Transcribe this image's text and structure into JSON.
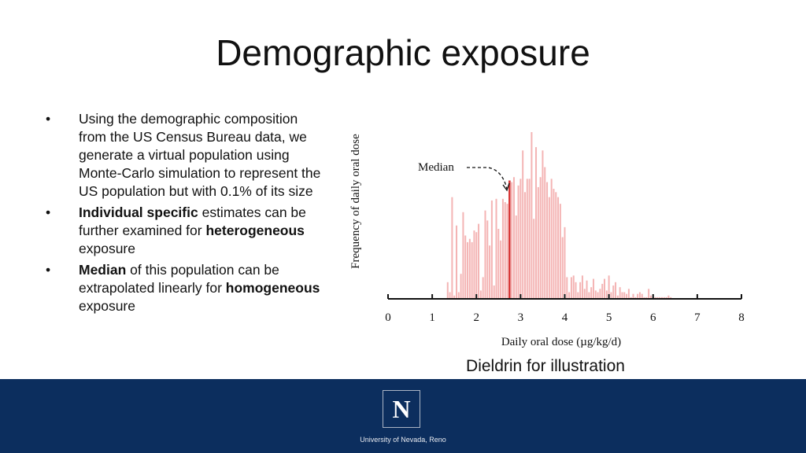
{
  "slide": {
    "title": "Demographic exposure",
    "caption": "Dieldrin for illustration"
  },
  "bullets": {
    "marker": "•",
    "b1": {
      "text": "Using the demographic composition from the US Census Bureau data, we generate a virtual population using Monte-Carlo simulation to represent the US population but with 0.1% of its size"
    },
    "b2": {
      "bold1": "Individual specific",
      "text1": " estimates can be further examined for ",
      "bold2": "heterogeneous",
      "text2": " exposure"
    },
    "b3": {
      "bold1": "Median",
      "text1": " of this population can be extrapolated linearly for ",
      "bold2": "homogeneous",
      "text2": " exposure"
    }
  },
  "chart_data": {
    "type": "bar",
    "title": "",
    "xlabel": "Daily oral dose (µg/kg/d)",
    "ylabel": "Frequency of daily oral dose",
    "xlim": [
      0,
      8
    ],
    "xticks": [
      "0",
      "1",
      "2",
      "3",
      "4",
      "5",
      "6",
      "7",
      "8"
    ],
    "ylim": [
      0,
      100
    ],
    "bin_width": 0.05,
    "bins_start": 1.35,
    "values": [
      10,
      4,
      61,
      2,
      44,
      4,
      15,
      52,
      38,
      34,
      36,
      34,
      41,
      40,
      45,
      5,
      13,
      53,
      47,
      32,
      59,
      8,
      60,
      42,
      35,
      60,
      58,
      57,
      67,
      70,
      73,
      50,
      68,
      72,
      89,
      64,
      72,
      72,
      100,
      48,
      91,
      67,
      73,
      89,
      79,
      70,
      61,
      72,
      66,
      64,
      61,
      57,
      37,
      43,
      13,
      4,
      13,
      14,
      10,
      4,
      10,
      14,
      6,
      11,
      4,
      7,
      12,
      5,
      4,
      6,
      9,
      12,
      5,
      14,
      4,
      8,
      10,
      2,
      7,
      4,
      4,
      3,
      6,
      1,
      3,
      1,
      3,
      4,
      3,
      1,
      1,
      6,
      2,
      1,
      1,
      1,
      1,
      1,
      1,
      1,
      2,
      1
    ],
    "median": 2.75,
    "median_height": 71,
    "annotation": "Median",
    "colors": {
      "bars": "#f4b4b4",
      "median": "#d63030"
    }
  },
  "footer": {
    "logo_letter": "N",
    "logo_caption": "University of Nevada, Reno"
  }
}
